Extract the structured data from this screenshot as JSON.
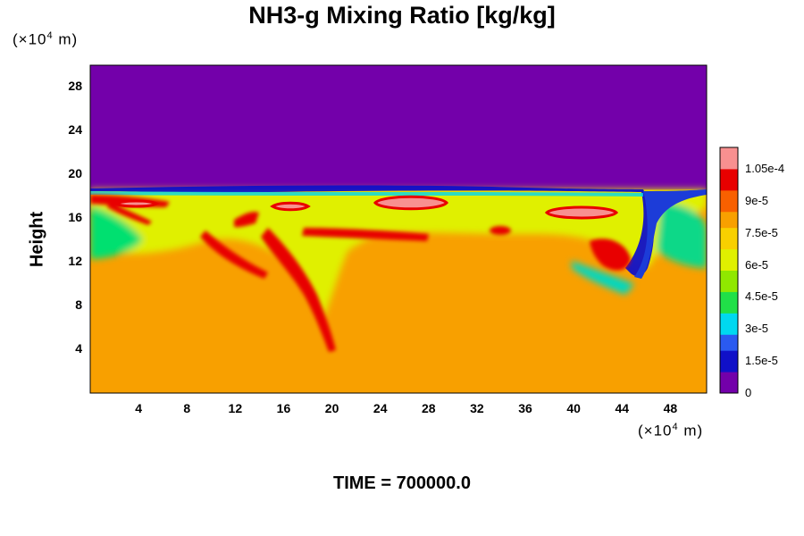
{
  "chart_data": {
    "type": "heatmap",
    "title": "NH3-g Mixing Ratio [kg/kg]",
    "ylabel": "Height",
    "x_unit": {
      "prefix": "(×10",
      "exp": "4",
      "suffix": " m)"
    },
    "y_unit": {
      "prefix": "(×10",
      "exp": "4",
      "suffix": " m)"
    },
    "xlim": [
      0,
      51
    ],
    "ylim": [
      0,
      30
    ],
    "x_ticks": [
      "4",
      "8",
      "12",
      "16",
      "20",
      "24",
      "28",
      "32",
      "36",
      "40",
      "44",
      "48"
    ],
    "x_tick_values": [
      4,
      8,
      12,
      16,
      20,
      24,
      28,
      32,
      36,
      40,
      44,
      48
    ],
    "y_ticks": [
      "4",
      "8",
      "12",
      "16",
      "20",
      "24",
      "28"
    ],
    "y_tick_values": [
      4,
      8,
      12,
      16,
      20,
      24,
      28
    ],
    "colorbar": {
      "range": [
        0,
        0.000115
      ],
      "ticks": [
        "0",
        "1.5e-5",
        "3e-5",
        "4.5e-5",
        "6e-5",
        "7.5e-5",
        "9e-5",
        "1.05e-4"
      ],
      "tick_values": [
        0,
        1.5e-05,
        3e-05,
        4.5e-05,
        6e-05,
        7.5e-05,
        9e-05,
        0.000105
      ],
      "colors": [
        "#7300aa",
        "#1010c8",
        "#2a5af0",
        "#00d8f0",
        "#20e048",
        "#90e800",
        "#e0f000",
        "#f8d000",
        "#f8a000",
        "#f86000",
        "#e80000",
        "#f89090"
      ]
    },
    "fields": {
      "upper_layer_value": 0.0,
      "lower_layer_value": 7.8e-05,
      "cloud_band_value": 6e-05,
      "interface_height": 18.6
    },
    "footer": "TIME = 700000.0"
  }
}
